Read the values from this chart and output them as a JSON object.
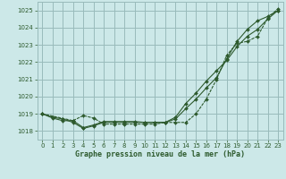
{
  "title": "Graphe pression niveau de la mer (hPa)",
  "bg_color": "#cce8e8",
  "grid_color": "#99bbbb",
  "line_color": "#2d5a2d",
  "xlim": [
    -0.5,
    23.5
  ],
  "ylim": [
    1017.5,
    1025.5
  ],
  "yticks": [
    1018,
    1019,
    1020,
    1021,
    1022,
    1023,
    1024,
    1025
  ],
  "xticks": [
    0,
    1,
    2,
    3,
    4,
    5,
    6,
    7,
    8,
    9,
    10,
    11,
    12,
    13,
    14,
    15,
    16,
    17,
    18,
    19,
    20,
    21,
    22,
    23
  ],
  "series1_x": [
    0,
    1,
    2,
    3,
    4,
    5,
    6,
    7,
    8,
    9,
    10,
    11,
    12,
    13,
    14,
    15,
    16,
    17,
    18,
    19,
    20,
    21,
    22,
    23
  ],
  "series1_y": [
    1019.0,
    1018.8,
    1018.7,
    1018.5,
    1018.15,
    1018.3,
    1018.5,
    1018.5,
    1018.5,
    1018.5,
    1018.5,
    1018.5,
    1018.5,
    1018.8,
    1019.6,
    1020.2,
    1020.9,
    1021.5,
    1022.1,
    1022.9,
    1023.5,
    1023.9,
    1024.5,
    1025.0
  ],
  "series2_x": [
    0,
    1,
    2,
    3,
    4,
    5,
    6,
    7,
    8,
    9,
    10,
    11,
    12,
    13,
    14,
    15,
    16,
    17,
    18,
    19,
    20,
    21,
    22,
    23
  ],
  "series2_y": [
    1019.0,
    1018.75,
    1018.6,
    1018.6,
    1018.2,
    1018.35,
    1018.55,
    1018.55,
    1018.55,
    1018.55,
    1018.5,
    1018.5,
    1018.5,
    1018.7,
    1019.3,
    1019.85,
    1020.5,
    1021.1,
    1022.2,
    1023.2,
    1023.9,
    1024.4,
    1024.65,
    1025.0
  ],
  "series3_x": [
    0,
    3,
    4,
    5,
    6,
    7,
    8,
    9,
    10,
    11,
    12,
    13,
    14,
    15,
    16,
    17,
    18,
    19,
    20,
    21,
    22,
    23
  ],
  "series3_y": [
    1019.0,
    1018.6,
    1018.9,
    1018.75,
    1018.4,
    1018.4,
    1018.4,
    1018.4,
    1018.4,
    1018.4,
    1018.5,
    1018.5,
    1018.5,
    1019.0,
    1019.85,
    1021.0,
    1022.4,
    1023.1,
    1023.2,
    1023.5,
    1024.55,
    1025.1
  ]
}
